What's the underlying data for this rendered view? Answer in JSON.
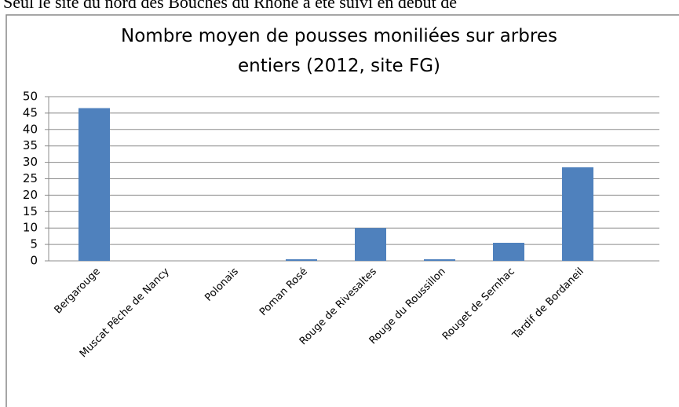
{
  "header": {
    "text": "Seul le site du nord des Bouches du Rhône a été suivi en début de"
  },
  "chart_data": {
    "type": "bar",
    "title": "Nombre moyen de pousses moniliées sur arbres entiers (2012, site FG)",
    "categories": [
      "Bergarouge",
      "Muscat Pêche de Nancy",
      "Polonais",
      "Poman Rosé",
      "Rouge de Rivesaltes",
      "Rouge du Roussillon",
      "Rouget de Sernhac",
      "Tardif de Bordaneil"
    ],
    "values": [
      46.5,
      0,
      0,
      0.5,
      10,
      0.5,
      5.5,
      28.5
    ],
    "color": "#4f81bd",
    "ylim": [
      0,
      50
    ],
    "yticks": [
      0,
      5,
      10,
      15,
      20,
      25,
      30,
      35,
      40,
      45,
      50
    ],
    "grid": true
  }
}
